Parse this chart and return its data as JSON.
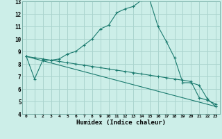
{
  "xlabel": "Humidex (Indice chaleur)",
  "bg_color": "#cceee8",
  "line_color": "#1a7a6e",
  "grid_color": "#aad4ce",
  "xlim": [
    -0.5,
    23.5
  ],
  "ylim": [
    4,
    13
  ],
  "xticks": [
    0,
    1,
    2,
    3,
    4,
    5,
    6,
    7,
    8,
    9,
    10,
    11,
    12,
    13,
    14,
    15,
    16,
    17,
    18,
    19,
    20,
    21,
    22,
    23
  ],
  "yticks": [
    4,
    5,
    6,
    7,
    8,
    9,
    10,
    11,
    12,
    13
  ],
  "line1_x": [
    0,
    1,
    2,
    3,
    4,
    5,
    6,
    7,
    8,
    9,
    10,
    11,
    12,
    13,
    14,
    15,
    16,
    17,
    18,
    19,
    20,
    21,
    22,
    23
  ],
  "line1_y": [
    8.6,
    6.8,
    8.3,
    8.3,
    8.4,
    8.8,
    9.0,
    9.5,
    10.0,
    10.8,
    11.1,
    12.1,
    12.4,
    12.6,
    13.1,
    13.1,
    11.0,
    9.8,
    8.5,
    6.5,
    6.5,
    6.3,
    5.2,
    4.6
  ],
  "line2_x": [
    0,
    1,
    2,
    3,
    4,
    5,
    6,
    7,
    8,
    9,
    10,
    11,
    12,
    13,
    14,
    15,
    16,
    17,
    18,
    19,
    20,
    21,
    22,
    23
  ],
  "line2_y": [
    8.6,
    8.5,
    8.4,
    8.3,
    8.2,
    8.1,
    8.0,
    7.9,
    7.8,
    7.7,
    7.6,
    7.5,
    7.4,
    7.3,
    7.2,
    7.1,
    7.0,
    6.9,
    6.8,
    6.7,
    6.6,
    5.3,
    5.1,
    4.8
  ],
  "line3_x": [
    0,
    23
  ],
  "line3_y": [
    8.6,
    4.6
  ]
}
